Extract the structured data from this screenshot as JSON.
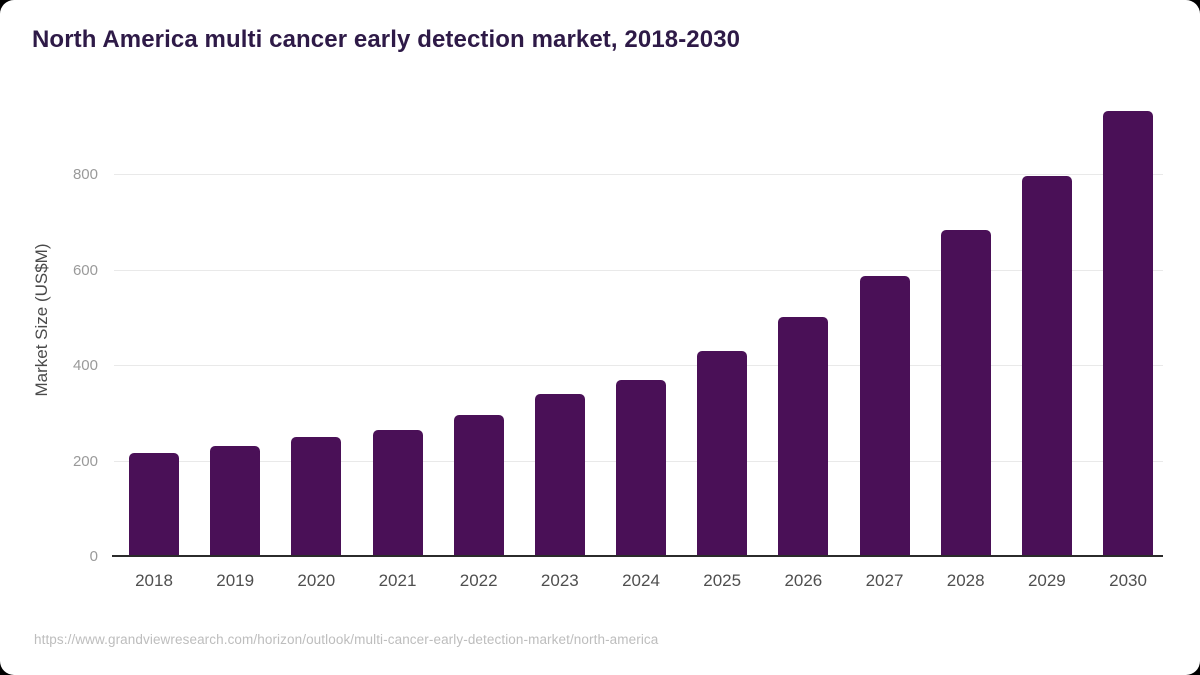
{
  "title": "North America multi cancer early detection market, 2018-2030",
  "source_url": "https://www.grandviewresearch.com/horizon/outlook/multi-cancer-early-detection-market/north-america",
  "colors": {
    "bar": "#4a1057",
    "title": "#2e1a47",
    "axis_line": "#2b2b2b",
    "gridline": "#e9e9e9",
    "y_tick_label": "#9a9a9a",
    "x_tick_label": "#4f4f4f",
    "y_axis_title": "#4a4a4a",
    "source_text": "#bdbdbd",
    "card_background": "#ffffff",
    "frame_background": "#000000"
  },
  "chart_data": {
    "type": "bar",
    "title": "North America multi cancer early detection market, 2018-2030",
    "xlabel": "",
    "ylabel": "Market Size (US$M)",
    "categories": [
      "2018",
      "2019",
      "2020",
      "2021",
      "2022",
      "2023",
      "2024",
      "2025",
      "2026",
      "2027",
      "2028",
      "2029",
      "2030"
    ],
    "values": [
      218,
      232,
      252,
      267,
      297,
      342,
      371,
      431,
      503,
      588,
      685,
      797,
      935
    ],
    "yticks": [
      0,
      200,
      400,
      600,
      800
    ],
    "ylim": [
      0,
      978
    ],
    "grid": true,
    "legend": false
  }
}
